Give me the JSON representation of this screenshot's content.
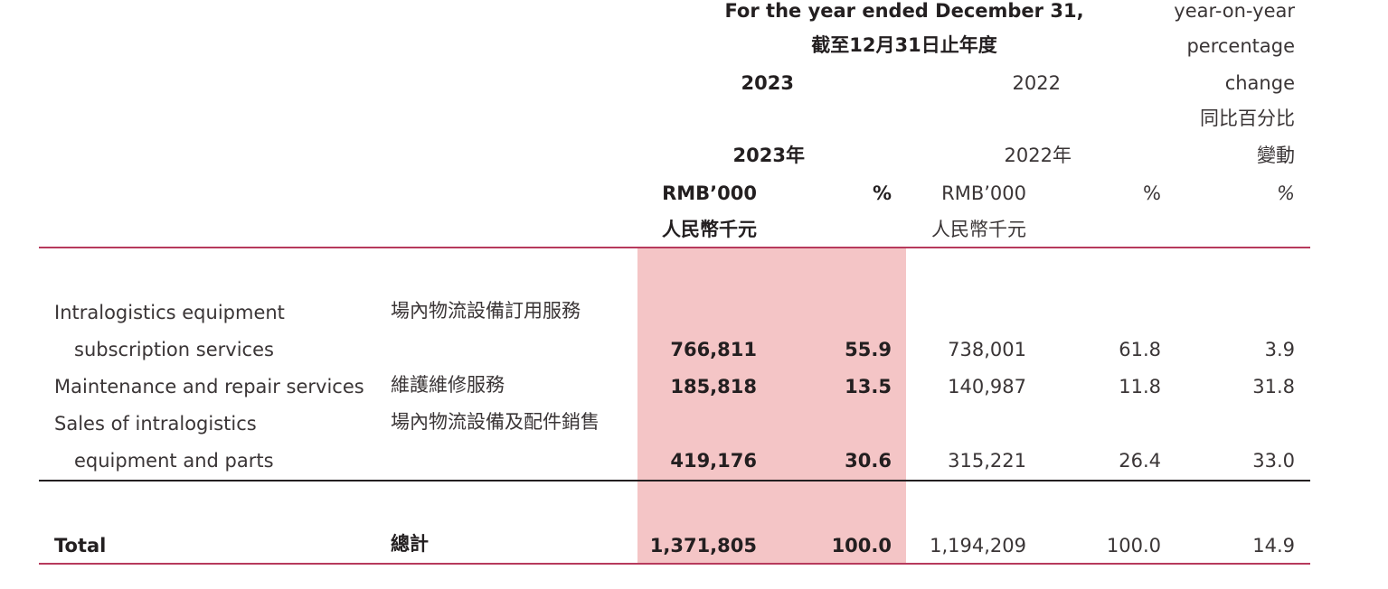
{
  "header": {
    "period_en": "For the year ended December 31,",
    "period_zh": "截至12月31日止年度",
    "year_current": "2023",
    "year_prior": "2022",
    "year_current_zh": "2023年",
    "year_prior_zh": "2022年",
    "yoy_line1": "year-on-year",
    "yoy_line2": "percentage",
    "yoy_line3": "change",
    "yoy_zh_line1": "同比百分比",
    "yoy_zh_line2": "變動",
    "unit_rmb_current": "RMB’000",
    "unit_rmb_current_zh": "人民幣千元",
    "unit_pct_current": "%",
    "unit_rmb_prior": "RMB’000",
    "unit_rmb_prior_zh": "人民幣千元",
    "unit_pct_prior": "%",
    "unit_pct_yoy": "%"
  },
  "rows": [
    {
      "label_en_line1": "Intralogistics equipment",
      "label_en_line2": "subscription services",
      "label_zh": "場內物流設備訂用服務",
      "amount_2023": "766,811",
      "pct_2023": "55.9",
      "amount_2022": "738,001",
      "pct_2022": "61.8",
      "yoy": "3.9"
    },
    {
      "label_en_line1": "Maintenance and repair services",
      "label_zh": "維護維修服務",
      "amount_2023": "185,818",
      "pct_2023": "13.5",
      "amount_2022": "140,987",
      "pct_2022": "11.8",
      "yoy": "31.8"
    },
    {
      "label_en_line1": "Sales of intralogistics",
      "label_en_line2": "equipment and parts",
      "label_zh": "場內物流設備及配件銷售",
      "amount_2023": "419,176",
      "pct_2023": "30.6",
      "amount_2022": "315,221",
      "pct_2022": "26.4",
      "yoy": "33.0"
    }
  ],
  "total": {
    "label_en": "Total",
    "label_zh": "總計",
    "amount_2023": "1,371,805",
    "pct_2023": "100.0",
    "amount_2022": "1,194,209",
    "pct_2022": "100.0",
    "yoy": "14.9"
  },
  "colors": {
    "highlight": "#f4c5c6",
    "rule_red": "#b73a5c",
    "text": "#231f20"
  }
}
